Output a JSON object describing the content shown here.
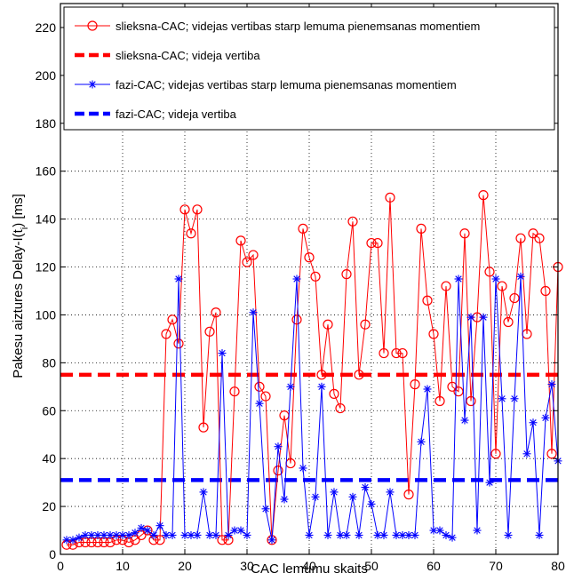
{
  "chart_data": {
    "type": "line",
    "title": "",
    "xlabel": "CAC lemumu skaits",
    "ylabel_parts": [
      "Pakesu aiztures",
      "Delay-I(t",
      "i",
      ")",
      "[ms]"
    ],
    "xlim": [
      0,
      80
    ],
    "ylim": [
      0,
      230
    ],
    "xticks": [
      0,
      10,
      20,
      30,
      40,
      50,
      60,
      70,
      80
    ],
    "yticks": [
      0,
      20,
      40,
      60,
      80,
      100,
      120,
      140,
      160,
      180,
      200,
      220
    ],
    "grid": "dotted",
    "legend_position": "top",
    "series": [
      {
        "name": "slieksna-CAC; videjas vertibas starp lemuma pienemsanas momentiem",
        "color": "#ff0000",
        "style": "solid",
        "marker": "circle",
        "x": [
          1,
          2,
          3,
          4,
          5,
          6,
          7,
          8,
          9,
          10,
          11,
          12,
          13,
          14,
          15,
          16,
          17,
          18,
          19,
          20,
          21,
          22,
          23,
          24,
          25,
          26,
          27,
          28,
          29,
          30,
          31,
          32,
          33,
          34,
          35,
          36,
          37,
          38,
          39,
          40,
          41,
          42,
          43,
          44,
          45,
          46,
          47,
          48,
          49,
          50,
          51,
          52,
          53,
          54,
          55,
          56,
          57,
          58,
          59,
          60,
          61,
          62,
          63,
          64,
          65,
          66,
          67,
          68,
          69,
          70,
          71,
          72,
          73,
          74,
          75,
          76,
          77,
          78,
          79,
          80
        ],
        "y": [
          4,
          4,
          5,
          5,
          5,
          5,
          5,
          5,
          6,
          6,
          5,
          6,
          8,
          10,
          6,
          6,
          92,
          98,
          88,
          144,
          134,
          144,
          53,
          93,
          101,
          6,
          6,
          68,
          131,
          122,
          125,
          70,
          66,
          6,
          35,
          58,
          38,
          98,
          136,
          124,
          116,
          75,
          96,
          67,
          61,
          117,
          139,
          75,
          96,
          130,
          130,
          84,
          149,
          84,
          84,
          25,
          71,
          136,
          106,
          92,
          64,
          112,
          70,
          68,
          134,
          64,
          99,
          150,
          118,
          42,
          112,
          97,
          107,
          132,
          92,
          134,
          132,
          110,
          42,
          120
        ]
      },
      {
        "name": "slieksna-CAC; videja vertiba",
        "color": "#ff0000",
        "style": "dashed",
        "marker": "none",
        "x": [
          0,
          80
        ],
        "y": [
          75,
          75
        ]
      },
      {
        "name": "fazi-CAC; videjas vertibas starp lemuma pienemsanas momentiem",
        "color": "#0000ff",
        "style": "solid",
        "marker": "star",
        "x": [
          1,
          2,
          3,
          4,
          5,
          6,
          7,
          8,
          9,
          10,
          11,
          12,
          13,
          14,
          15,
          16,
          17,
          18,
          19,
          20,
          21,
          22,
          23,
          24,
          25,
          26,
          27,
          28,
          29,
          30,
          31,
          32,
          33,
          34,
          35,
          36,
          37,
          38,
          39,
          40,
          41,
          42,
          43,
          44,
          45,
          46,
          47,
          48,
          49,
          50,
          51,
          52,
          53,
          54,
          55,
          56,
          57,
          58,
          59,
          60,
          61,
          62,
          63,
          64,
          65,
          66,
          67,
          68,
          69,
          70,
          71,
          72,
          73,
          74,
          75,
          76,
          77,
          78,
          79,
          80
        ],
        "y": [
          6,
          6,
          7,
          8,
          8,
          8,
          8,
          8,
          8,
          8,
          8,
          9,
          11,
          10,
          8,
          12,
          8,
          8,
          115,
          8,
          8,
          8,
          26,
          8,
          8,
          84,
          8,
          10,
          10,
          8,
          101,
          63,
          19,
          6,
          45,
          23,
          70,
          115,
          36,
          8,
          24,
          70,
          8,
          26,
          8,
          8,
          24,
          8,
          28,
          21,
          8,
          8,
          26,
          8,
          8,
          8,
          8,
          47,
          69,
          10,
          10,
          8,
          7,
          115,
          56,
          99,
          10,
          99,
          30,
          115,
          65,
          8,
          65,
          116,
          42,
          55,
          8,
          57,
          71,
          39
        ]
      },
      {
        "name": "fazi-CAC; videja vertiba",
        "color": "#0000ff",
        "style": "dashed",
        "marker": "none",
        "x": [
          0,
          80
        ],
        "y": [
          31,
          31
        ]
      }
    ]
  }
}
